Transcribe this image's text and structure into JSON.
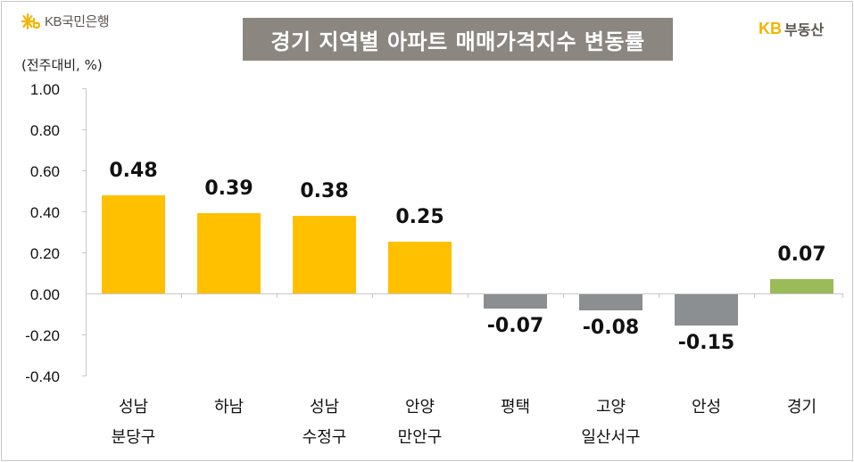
{
  "header": {
    "bank_logo": {
      "icon": "kb-star-icon",
      "text": "KB국민은행",
      "color": "#f5b400"
    },
    "brand_logo": {
      "kb": "KB",
      "text": "부동산"
    },
    "title": "경기 지역별 아파트 매매가격지수 변동률",
    "unit": "(전주대비, %)"
  },
  "colors": {
    "positive_region": "#ffc000",
    "negative_region": "#8c8f92",
    "province_total": "#9bbb59",
    "title_bg": "#8b8680"
  },
  "y_ticks": [
    "1.00",
    "0.80",
    "0.60",
    "0.40",
    "0.20",
    "0.00",
    "-0.20",
    "-0.40"
  ],
  "bars": [
    {
      "line1": "성남",
      "line2": "분당구",
      "value": 0.48,
      "label": "0.48",
      "color": "#ffc000"
    },
    {
      "line1": "하남",
      "line2": "",
      "value": 0.39,
      "label": "0.39",
      "color": "#ffc000"
    },
    {
      "line1": "성남",
      "line2": "수정구",
      "value": 0.38,
      "label": "0.38",
      "color": "#ffc000"
    },
    {
      "line1": "안양",
      "line2": "만안구",
      "value": 0.25,
      "label": "0.25",
      "color": "#ffc000"
    },
    {
      "line1": "평택",
      "line2": "",
      "value": -0.07,
      "label": "-0.07",
      "color": "#8c8f92"
    },
    {
      "line1": "고양",
      "line2": "일산서구",
      "value": -0.08,
      "label": "-0.08",
      "color": "#8c8f92"
    },
    {
      "line1": "안성",
      "line2": "",
      "value": -0.15,
      "label": "-0.15",
      "color": "#8c8f92"
    },
    {
      "line1": "경기",
      "line2": "",
      "value": 0.07,
      "label": "0.07",
      "color": "#9bbb59"
    }
  ],
  "chart_data": {
    "type": "bar",
    "title": "경기 지역별 아파트 매매가격지수 변동률",
    "subtitle": "(전주대비, %)",
    "categories": [
      "성남 분당구",
      "하남",
      "성남 수정구",
      "안양 만안구",
      "평택",
      "고양 일산서구",
      "안성",
      "경기"
    ],
    "values": [
      0.48,
      0.39,
      0.38,
      0.25,
      -0.07,
      -0.08,
      -0.15,
      0.07
    ],
    "xlabel": "",
    "ylabel": "전주대비, %",
    "ylim": [
      -0.4,
      1.0
    ],
    "yticks": [
      1.0,
      0.8,
      0.6,
      0.4,
      0.2,
      0.0,
      -0.2,
      -0.4
    ],
    "grid": false,
    "legend": null,
    "data_labels": true,
    "bar_colors": [
      "#ffc000",
      "#ffc000",
      "#ffc000",
      "#ffc000",
      "#8c8f92",
      "#8c8f92",
      "#8c8f92",
      "#9bbb59"
    ]
  }
}
